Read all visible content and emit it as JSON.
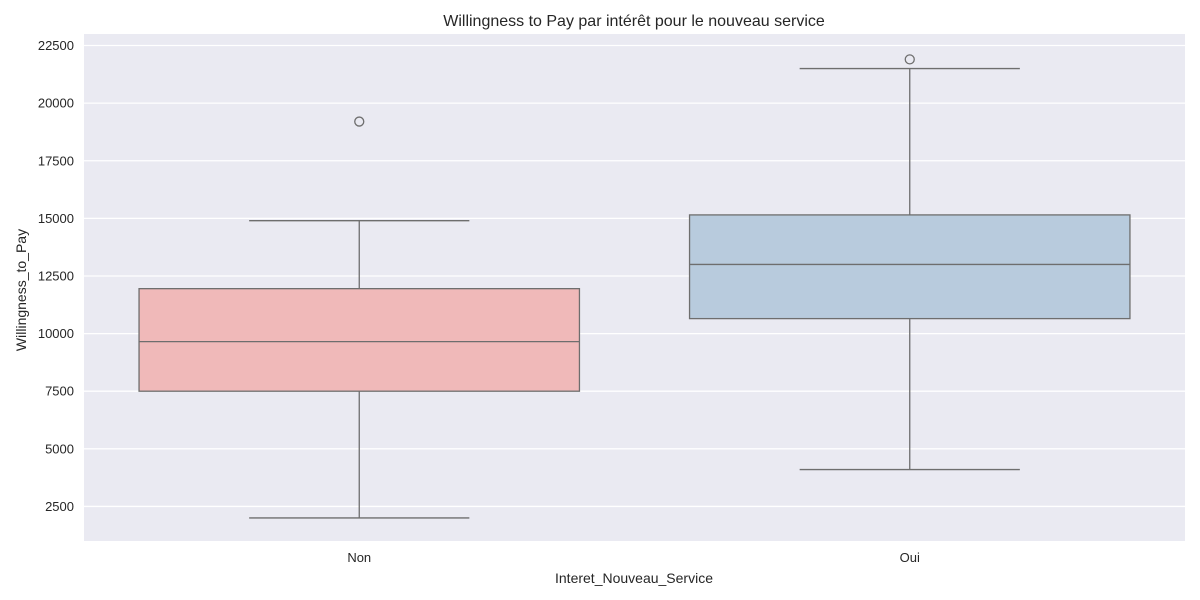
{
  "chart_data": {
    "type": "box",
    "title": "Willingness to Pay par intérêt pour le nouveau service",
    "xlabel": "Interet_Nouveau_Service",
    "ylabel": "Willingness_to_Pay",
    "categories": [
      "Non",
      "Oui"
    ],
    "ylim": [
      1000,
      23000
    ],
    "yticks": [
      2500,
      5000,
      7500,
      10000,
      12500,
      15000,
      17500,
      20000,
      22500
    ],
    "ytick_labels": [
      "2500",
      "5000",
      "7500",
      "10000",
      "12500",
      "15000",
      "17500",
      "20000",
      "22500"
    ],
    "grid": true,
    "boxes": [
      {
        "category": "Non",
        "whisker_low": 2000,
        "q1": 7500,
        "median": 9650,
        "q3": 11950,
        "whisker_high": 14900,
        "outliers": [
          19200
        ],
        "color": "#f0b9b9"
      },
      {
        "category": "Oui",
        "whisker_low": 4100,
        "q1": 10650,
        "median": 13000,
        "q3": 15150,
        "whisker_high": 21500,
        "outliers": [
          21900
        ],
        "color": "#b8cbdd"
      }
    ],
    "colors": {
      "background": "#eaeaf2",
      "grid": "#ffffff",
      "line": "#6e6e6e"
    }
  }
}
